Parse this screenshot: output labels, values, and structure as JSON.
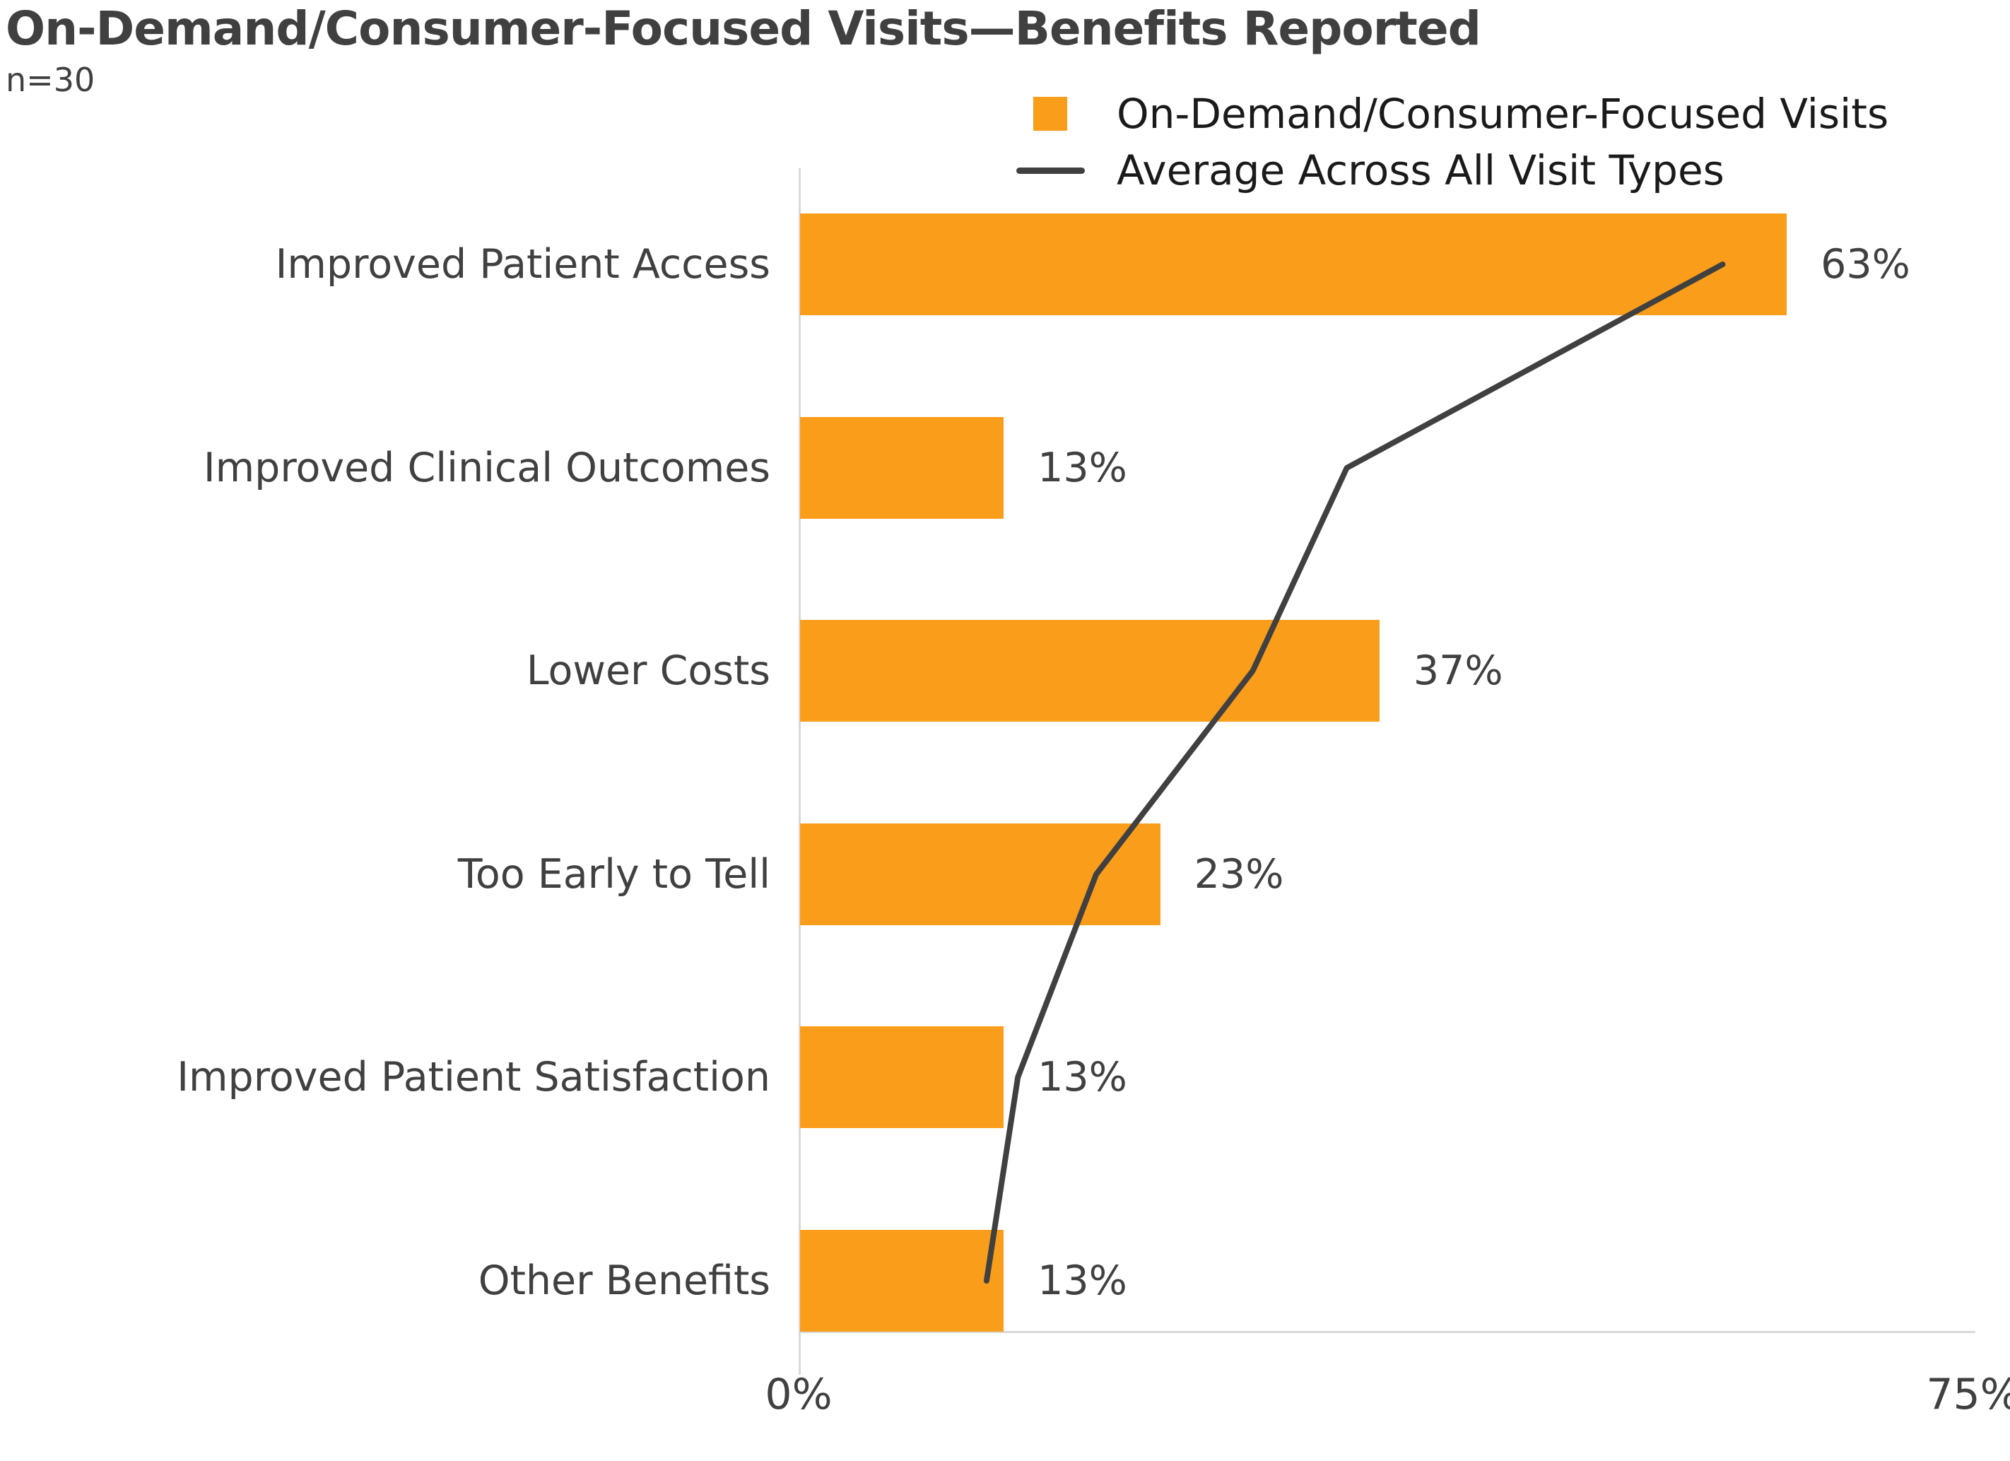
{
  "chart_data": {
    "type": "bar",
    "orientation": "horizontal",
    "title": "On-Demand/Consumer-Focused Visits—Benefits Reported",
    "subtitle": "n=30",
    "categories": [
      "Improved Patient Access",
      "Improved Clinical Outcomes",
      "Lower Costs",
      "Too Early to Tell",
      "Improved Patient Satisfaction",
      "Other Benefits"
    ],
    "series": [
      {
        "name": "On-Demand/Consumer-Focused Visits",
        "type": "bar",
        "values": [
          63,
          13,
          37,
          23,
          13,
          13
        ],
        "value_labels": [
          "63%",
          "13%",
          "37%",
          "23%",
          "13%",
          "13%"
        ],
        "color": "#FA9D1B"
      },
      {
        "name": "Average Across All Visit Types",
        "type": "line",
        "values": [
          59,
          35,
          29,
          19,
          14,
          12
        ],
        "color": "#404040"
      }
    ],
    "xlim": [
      0,
      75
    ],
    "x_ticks": [
      {
        "label": "0%",
        "value": 0
      },
      {
        "label": "75%",
        "value": 75
      }
    ],
    "ylabel": "",
    "xlabel": "",
    "grid": false,
    "legend_position": "top-right",
    "axis_color": "#d9d9d9",
    "text_color": "#404040"
  }
}
